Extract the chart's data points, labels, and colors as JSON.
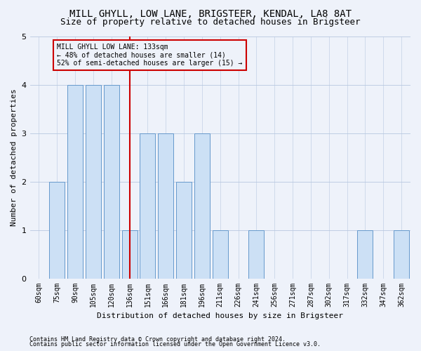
{
  "title": "MILL GHYLL, LOW LANE, BRIGSTEER, KENDAL, LA8 8AT",
  "subtitle": "Size of property relative to detached houses in Brigsteer",
  "xlabel": "Distribution of detached houses by size in Brigsteer",
  "ylabel": "Number of detached properties",
  "categories": [
    "60sqm",
    "75sqm",
    "90sqm",
    "105sqm",
    "120sqm",
    "136sqm",
    "151sqm",
    "166sqm",
    "181sqm",
    "196sqm",
    "211sqm",
    "226sqm",
    "241sqm",
    "256sqm",
    "271sqm",
    "287sqm",
    "302sqm",
    "317sqm",
    "332sqm",
    "347sqm",
    "362sqm"
  ],
  "values": [
    0,
    2,
    4,
    4,
    4,
    1,
    3,
    3,
    2,
    3,
    1,
    0,
    1,
    0,
    0,
    0,
    0,
    0,
    1,
    0,
    1
  ],
  "bar_color": "#cce0f5",
  "bar_edge_color": "#6699cc",
  "highlight_index": 5,
  "highlight_line_color": "#cc0000",
  "annotation_text": "MILL GHYLL LOW LANE: 133sqm\n← 48% of detached houses are smaller (14)\n52% of semi-detached houses are larger (15) →",
  "annotation_box_color": "#cc0000",
  "ylim": [
    0,
    5
  ],
  "yticks": [
    0,
    1,
    2,
    3,
    4,
    5
  ],
  "footnote1": "Contains HM Land Registry data © Crown copyright and database right 2024.",
  "footnote2": "Contains public sector information licensed under the Open Government Licence v3.0.",
  "background_color": "#eef2fa",
  "grid_color": "#b8c8e0",
  "title_fontsize": 10,
  "subtitle_fontsize": 9,
  "tick_fontsize": 7,
  "ylabel_fontsize": 8,
  "xlabel_fontsize": 8,
  "footnote_fontsize": 6,
  "annotation_fontsize": 7
}
